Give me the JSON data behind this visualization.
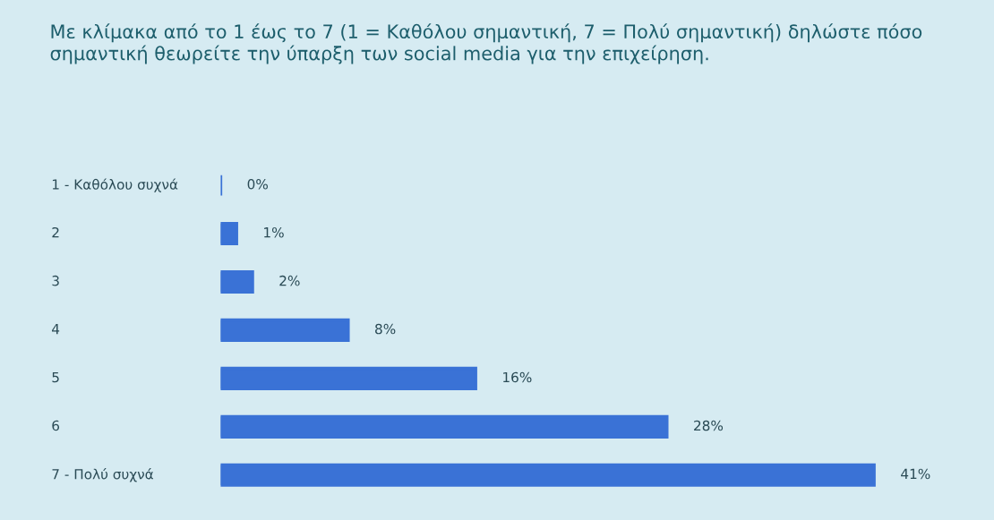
{
  "chart_data": {
    "type": "bar",
    "orientation": "horizontal",
    "title": "Με κλίμακα από το 1 έως το 7 (1 = Καθόλου σημαντική, 7 = Πολύ σημαντική) δηλώστε πόσο σημαντική θεωρείτε την ύπαρξη των social media για την επιχείρηση.",
    "categories": [
      "1 - Καθόλου συχνά",
      "2",
      "3",
      "4",
      "5",
      "6",
      "7 - Πολύ συχνά"
    ],
    "values": [
      0,
      1,
      2,
      8,
      16,
      28,
      41
    ],
    "value_labels": [
      "0%",
      "1%",
      "2%",
      "8%",
      "16%",
      "28%",
      "41%"
    ],
    "color": "#3a72d6"
  }
}
